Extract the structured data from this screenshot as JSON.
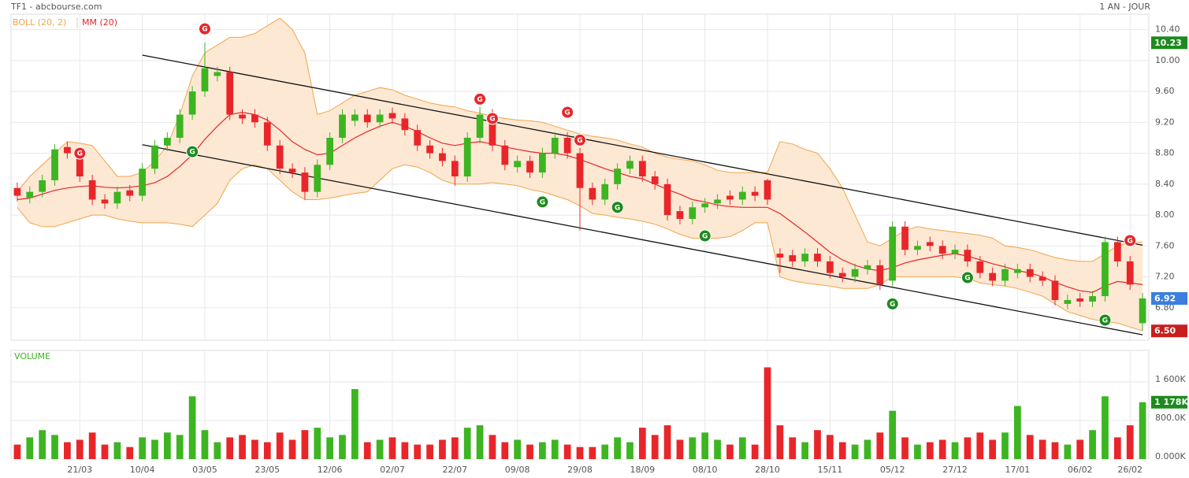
{
  "chart_data": {
    "type": "candlestick",
    "title": "TF1 - abcbourse.com",
    "period": "1 AN - JOUR",
    "grid": true,
    "categories": [
      null,
      null,
      null,
      null,
      null,
      "21/03",
      null,
      null,
      null,
      null,
      "10/04",
      null,
      null,
      null,
      null,
      "03/05",
      null,
      null,
      null,
      null,
      "23/05",
      null,
      null,
      null,
      null,
      "12/06",
      null,
      null,
      null,
      null,
      "02/07",
      null,
      null,
      null,
      null,
      "22/07",
      null,
      null,
      null,
      null,
      "09/08",
      null,
      null,
      null,
      null,
      "29/08",
      null,
      null,
      null,
      null,
      "18/09",
      null,
      null,
      null,
      null,
      "08/10",
      null,
      null,
      null,
      null,
      "28/10",
      null,
      null,
      null,
      null,
      "15/11",
      null,
      null,
      null,
      null,
      "05/12",
      null,
      null,
      null,
      null,
      "27/12",
      null,
      null,
      null,
      null,
      "17/01",
      null,
      null,
      null,
      null,
      "06/02",
      null,
      null,
      null,
      "26/02",
      null
    ],
    "open": [
      8.35,
      8.22,
      8.3,
      8.45,
      8.88,
      8.8,
      8.45,
      8.2,
      8.15,
      8.32,
      8.25,
      8.6,
      8.9,
      9.0,
      9.3,
      9.6,
      9.8,
      9.85,
      9.3,
      9.3,
      9.2,
      8.9,
      8.6,
      8.55,
      8.3,
      8.65,
      9.0,
      9.22,
      9.3,
      9.2,
      9.32,
      9.25,
      9.1,
      8.9,
      8.8,
      8.7,
      8.5,
      9.0,
      9.3,
      8.9,
      8.62,
      8.7,
      8.55,
      8.8,
      9.0,
      8.8,
      8.35,
      8.2,
      8.4,
      8.6,
      8.7,
      8.5,
      8.4,
      8.05,
      7.95,
      8.1,
      8.15,
      8.25,
      8.2,
      8.3,
      8.45,
      7.5,
      7.48,
      7.4,
      7.5,
      7.4,
      7.25,
      7.2,
      7.3,
      7.35,
      7.15,
      7.85,
      7.55,
      7.65,
      7.6,
      7.5,
      7.55,
      7.4,
      7.25,
      7.15,
      7.25,
      7.3,
      7.2,
      7.15,
      6.85,
      6.92,
      6.88,
      6.95,
      7.65,
      7.4,
      6.6
    ],
    "high": [
      8.42,
      8.37,
      8.52,
      8.92,
      8.95,
      8.87,
      8.52,
      8.27,
      8.37,
      8.39,
      8.67,
      8.97,
      9.07,
      9.37,
      9.67,
      10.23,
      9.92,
      9.92,
      9.37,
      9.37,
      9.27,
      8.97,
      8.67,
      8.62,
      8.72,
      9.07,
      9.37,
      9.37,
      9.37,
      9.37,
      9.39,
      9.32,
      9.17,
      8.97,
      8.87,
      8.77,
      9.07,
      9.4,
      9.37,
      8.97,
      8.77,
      8.77,
      8.87,
      9.07,
      9.07,
      8.87,
      8.42,
      8.47,
      8.67,
      8.77,
      8.77,
      8.57,
      8.47,
      8.12,
      8.17,
      8.22,
      8.27,
      8.32,
      8.37,
      8.37,
      8.47,
      7.57,
      7.55,
      7.57,
      7.57,
      7.47,
      7.32,
      7.37,
      7.42,
      7.42,
      7.92,
      7.92,
      7.67,
      7.72,
      7.67,
      7.62,
      7.62,
      7.47,
      7.32,
      7.37,
      7.37,
      7.37,
      7.27,
      7.22,
      6.97,
      6.99,
      7.02,
      7.72,
      7.72,
      7.47,
      6.99
    ],
    "low": [
      8.18,
      8.15,
      8.23,
      8.38,
      8.73,
      8.43,
      8.13,
      8.08,
      8.08,
      8.18,
      8.18,
      8.53,
      8.83,
      8.93,
      9.23,
      9.53,
      9.73,
      9.23,
      9.18,
      9.13,
      8.83,
      8.53,
      8.48,
      8.2,
      8.23,
      8.58,
      8.93,
      9.15,
      9.13,
      9.13,
      9.18,
      9.03,
      8.83,
      8.73,
      8.63,
      8.38,
      8.43,
      8.93,
      8.83,
      8.58,
      8.55,
      8.48,
      8.48,
      8.73,
      8.73,
      7.8,
      8.13,
      8.13,
      8.33,
      8.53,
      8.43,
      8.33,
      7.93,
      7.88,
      7.88,
      8.03,
      8.08,
      8.13,
      8.13,
      8.18,
      8.13,
      7.25,
      7.33,
      7.33,
      7.33,
      7.18,
      7.13,
      7.13,
      7.23,
      7.03,
      7.08,
      7.48,
      7.48,
      7.53,
      7.43,
      7.43,
      7.33,
      7.18,
      7.08,
      7.08,
      7.18,
      7.13,
      7.08,
      6.83,
      6.78,
      6.81,
      6.81,
      6.88,
      7.33,
      7.03,
      6.5
    ],
    "close": [
      8.25,
      8.3,
      8.45,
      8.85,
      8.8,
      8.5,
      8.2,
      8.15,
      8.3,
      8.25,
      8.6,
      8.9,
      9.0,
      9.3,
      9.6,
      9.9,
      9.85,
      9.3,
      9.25,
      9.2,
      8.9,
      8.6,
      8.55,
      8.3,
      8.65,
      9.0,
      9.3,
      9.3,
      9.2,
      9.3,
      9.25,
      9.1,
      8.9,
      8.8,
      8.7,
      8.5,
      9.0,
      9.3,
      8.9,
      8.65,
      8.7,
      8.55,
      8.8,
      9.0,
      8.8,
      8.35,
      8.2,
      8.4,
      8.6,
      8.7,
      8.5,
      8.4,
      8.0,
      7.95,
      8.1,
      8.15,
      8.2,
      8.2,
      8.3,
      8.25,
      8.2,
      7.45,
      7.4,
      7.5,
      7.4,
      7.25,
      7.2,
      7.3,
      7.35,
      7.1,
      7.85,
      7.55,
      7.6,
      7.6,
      7.5,
      7.55,
      7.4,
      7.25,
      7.15,
      7.3,
      7.3,
      7.2,
      7.15,
      6.9,
      6.9,
      6.88,
      6.95,
      7.65,
      7.4,
      7.1,
      6.92
    ],
    "colors": {
      "up": "#3cb521",
      "down": "#e8262a"
    },
    "ylim": [
      6.38,
      10.6
    ],
    "yticks": [
      {
        "value": 10.4,
        "label": "10.40"
      },
      {
        "value": 10.0,
        "label": "10.00"
      },
      {
        "value": 9.6,
        "label": "9.60"
      },
      {
        "value": 9.2,
        "label": "9.20"
      },
      {
        "value": 8.8,
        "label": "8.80"
      },
      {
        "value": 8.4,
        "label": "8.40"
      },
      {
        "value": 8.0,
        "label": "8.00"
      },
      {
        "value": 7.6,
        "label": "7.60"
      },
      {
        "value": 7.2,
        "label": "7.20"
      },
      {
        "value": 6.8,
        "label": "6.80"
      }
    ],
    "markers": [
      {
        "value": 10.23,
        "color": "#1e8a1e"
      },
      {
        "value": 6.92,
        "color": "#3a7ee0"
      },
      {
        "value": 6.5,
        "label": "6.50",
        "color": "#c81e1e"
      }
    ],
    "bollinger": {
      "label": "BOLL (20, 2)",
      "color": "#f0a54a",
      "fill": "#fde8d4",
      "upper": [
        8.3,
        8.5,
        8.65,
        8.8,
        8.95,
        8.93,
        8.9,
        8.7,
        8.5,
        8.5,
        8.55,
        8.7,
        8.9,
        9.3,
        9.8,
        10.1,
        10.2,
        10.3,
        10.3,
        10.35,
        10.45,
        10.55,
        10.4,
        10.1,
        9.3,
        9.35,
        9.45,
        9.55,
        9.6,
        9.65,
        9.62,
        9.55,
        9.5,
        9.45,
        9.42,
        9.4,
        9.35,
        9.32,
        9.28,
        9.25,
        9.23,
        9.22,
        9.2,
        9.15,
        9.1,
        9.05,
        9.02,
        9.0,
        8.97,
        8.92,
        8.88,
        8.8,
        8.75,
        8.72,
        8.7,
        8.65,
        8.58,
        8.55,
        8.55,
        8.55,
        8.55,
        8.95,
        8.92,
        8.85,
        8.8,
        8.6,
        8.35,
        8.0,
        7.65,
        7.6,
        7.7,
        7.8,
        7.85,
        7.82,
        7.8,
        7.78,
        7.76,
        7.74,
        7.7,
        7.6,
        7.58,
        7.55,
        7.5,
        7.45,
        7.42,
        7.4,
        7.4,
        7.5,
        7.6,
        7.65,
        7.65
      ],
      "lower": [
        8.1,
        7.9,
        7.85,
        7.85,
        7.9,
        7.95,
        8.0,
        8.0,
        7.95,
        7.92,
        7.9,
        7.9,
        7.9,
        7.88,
        7.85,
        8.0,
        8.15,
        8.45,
        8.6,
        8.65,
        8.6,
        8.45,
        8.3,
        8.2,
        8.2,
        8.22,
        8.25,
        8.28,
        8.3,
        8.45,
        8.6,
        8.65,
        8.62,
        8.55,
        8.45,
        8.4,
        8.4,
        8.4,
        8.42,
        8.4,
        8.38,
        8.33,
        8.3,
        8.25,
        8.2,
        8.12,
        8.02,
        8.0,
        7.97,
        7.95,
        7.92,
        7.88,
        7.82,
        7.75,
        7.7,
        7.7,
        7.7,
        7.72,
        7.8,
        7.9,
        7.9,
        7.2,
        7.15,
        7.12,
        7.1,
        7.08,
        7.05,
        7.05,
        7.05,
        7.1,
        7.2,
        7.2,
        7.2,
        7.2,
        7.2,
        7.2,
        7.18,
        7.12,
        7.1,
        7.08,
        7.05,
        7.0,
        6.95,
        6.85,
        6.75,
        6.7,
        6.65,
        6.62,
        6.6,
        6.55,
        6.5
      ]
    },
    "ma": {
      "label": "MM (20)",
      "color": "#e8262a",
      "values": [
        8.2,
        8.22,
        8.27,
        8.32,
        8.35,
        8.37,
        8.38,
        8.36,
        8.35,
        8.36,
        8.38,
        8.42,
        8.5,
        8.63,
        8.78,
        8.98,
        9.15,
        9.3,
        9.33,
        9.3,
        9.23,
        9.1,
        8.95,
        8.85,
        8.78,
        8.8,
        8.9,
        9.0,
        9.08,
        9.15,
        9.2,
        9.15,
        9.08,
        9.0,
        8.93,
        8.9,
        8.93,
        8.95,
        8.92,
        8.88,
        8.85,
        8.82,
        8.8,
        8.8,
        8.77,
        8.72,
        8.66,
        8.6,
        8.55,
        8.5,
        8.47,
        8.4,
        8.33,
        8.27,
        8.2,
        8.17,
        8.13,
        8.11,
        8.1,
        8.1,
        8.1,
        8.02,
        7.9,
        7.78,
        7.65,
        7.52,
        7.42,
        7.35,
        7.3,
        7.28,
        7.32,
        7.38,
        7.42,
        7.45,
        7.48,
        7.5,
        7.47,
        7.42,
        7.37,
        7.33,
        7.28,
        7.25,
        7.2,
        7.13,
        7.07,
        7.02,
        7.0,
        7.08,
        7.14,
        7.12,
        7.1
      ]
    },
    "signals": [
      {
        "label": "G",
        "index": 15,
        "value": 10.41,
        "color": "#e8262a"
      },
      {
        "label": "G",
        "index": 5,
        "value": 8.8,
        "color": "#e8262a"
      },
      {
        "label": "G",
        "index": 37,
        "value": 9.5,
        "color": "#e8262a"
      },
      {
        "label": "G",
        "index": 38,
        "value": 9.25,
        "color": "#e8262a"
      },
      {
        "label": "G",
        "index": 44,
        "value": 9.33,
        "color": "#e8262a"
      },
      {
        "label": "G",
        "index": 45,
        "value": 8.97,
        "color": "#e8262a"
      },
      {
        "label": "G",
        "index": 89,
        "value": 7.67,
        "color": "#e8262a"
      },
      {
        "label": "G",
        "index": 14,
        "value": 8.82,
        "color": "#1e8a1e"
      },
      {
        "label": "G",
        "index": 42,
        "value": 8.17,
        "color": "#1e8a1e"
      },
      {
        "label": "G",
        "index": 48,
        "value": 8.1,
        "color": "#1e8a1e"
      },
      {
        "label": "G",
        "index": 55,
        "value": 7.73,
        "color": "#1e8a1e"
      },
      {
        "label": "G",
        "index": 70,
        "value": 6.85,
        "color": "#1e8a1e"
      },
      {
        "label": "G",
        "index": 76,
        "value": 7.19,
        "color": "#1e8a1e"
      },
      {
        "label": "G",
        "index": 87,
        "value": 6.64,
        "color": "#1e8a1e"
      }
    ],
    "trendlines": [
      {
        "start": 10,
        "from": 10.07,
        "end": 90,
        "to": 7.61
      },
      {
        "start": 10,
        "from": 8.91,
        "end": 90,
        "to": 6.45
      }
    ],
    "volume": {
      "label": "VOLUME",
      "label_color": "#3cb521",
      "ylim": [
        0,
        2250000
      ],
      "yticks": [
        {
          "value": 1600000,
          "label": "1 600K"
        },
        {
          "value": 800000,
          "label": "800.0K"
        },
        {
          "value": 0,
          "label": "0.000K"
        }
      ],
      "marker": {
        "value": 1178000,
        "label": "1 178K",
        "color": "#1e8a1e"
      },
      "values": [
        300000,
        450000,
        600000,
        500000,
        350000,
        400000,
        550000,
        300000,
        350000,
        250000,
        450000,
        400000,
        550000,
        500000,
        1300000,
        600000,
        350000,
        450000,
        500000,
        400000,
        350000,
        550000,
        400000,
        600000,
        650000,
        450000,
        500000,
        1450000,
        350000,
        400000,
        450000,
        350000,
        300000,
        300000,
        400000,
        450000,
        650000,
        700000,
        500000,
        350000,
        400000,
        300000,
        350000,
        400000,
        300000,
        250000,
        250000,
        300000,
        450000,
        350000,
        650000,
        500000,
        700000,
        400000,
        450000,
        550000,
        400000,
        300000,
        450000,
        300000,
        1900000,
        700000,
        450000,
        350000,
        600000,
        500000,
        350000,
        300000,
        400000,
        550000,
        1000000,
        450000,
        300000,
        350000,
        400000,
        350000,
        450000,
        550000,
        400000,
        550000,
        1100000,
        500000,
        400000,
        350000,
        300000,
        400000,
        600000,
        1300000,
        450000,
        700000,
        1178000
      ]
    }
  }
}
